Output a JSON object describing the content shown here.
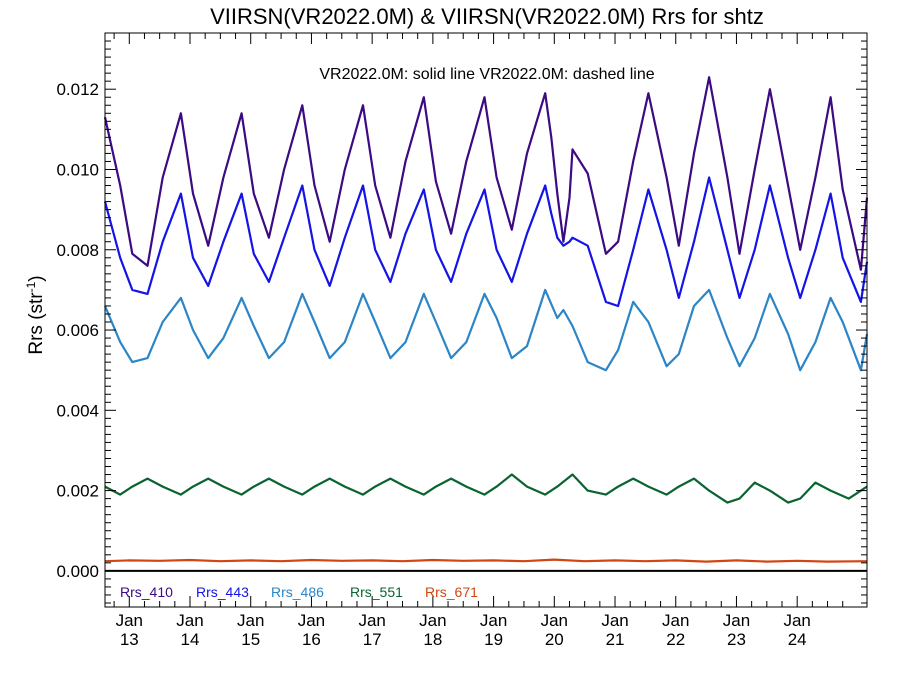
{
  "chart_data": {
    "type": "line",
    "title": "VIIRSN(VR2022.0M) & VIIRSN(VR2022.0M)  Rrs for shtz",
    "annotation": "VR2022.0M: solid line   VR2022.0M: dashed line",
    "ylabel": "Rrs (str",
    "ylabel_sup": "-1",
    "ylabel_close": ")",
    "xlabel": "",
    "xlim": [
      12.6,
      25.15
    ],
    "ylim": [
      -0.0009,
      0.0134
    ],
    "yticks": [
      0.0,
      0.002,
      0.004,
      0.006,
      0.008,
      0.01,
      0.012
    ],
    "ytick_labels": [
      "0.000",
      "0.002",
      "0.004",
      "0.006",
      "0.008",
      "0.010",
      "0.012"
    ],
    "xticks": [
      {
        "pos": 13,
        "month": "Jan",
        "day": "13"
      },
      {
        "pos": 14,
        "month": "Jan",
        "day": "14"
      },
      {
        "pos": 15,
        "month": "Jan",
        "day": "15"
      },
      {
        "pos": 16,
        "month": "Jan",
        "day": "16"
      },
      {
        "pos": 17,
        "month": "Jan",
        "day": "17"
      },
      {
        "pos": 18,
        "month": "Jan",
        "day": "18"
      },
      {
        "pos": 19,
        "month": "Jan",
        "day": "19"
      },
      {
        "pos": 20,
        "month": "Jan",
        "day": "20"
      },
      {
        "pos": 21,
        "month": "Jan",
        "day": "21"
      },
      {
        "pos": 22,
        "month": "Jan",
        "day": "22"
      },
      {
        "pos": 23,
        "month": "Jan",
        "day": "23"
      },
      {
        "pos": 24,
        "month": "Jan",
        "day": "24"
      }
    ],
    "zero_line": true,
    "grid": false,
    "series": [
      {
        "name": "Rrs_410",
        "color": "#3c0a82",
        "x": [
          12.6,
          12.85,
          13.05,
          13.3,
          13.55,
          13.85,
          14.05,
          14.3,
          14.55,
          14.85,
          15.05,
          15.3,
          15.55,
          15.85,
          16.05,
          16.3,
          16.55,
          16.85,
          17.05,
          17.3,
          17.55,
          17.85,
          18.05,
          18.3,
          18.55,
          18.85,
          19.05,
          19.3,
          19.55,
          19.85,
          19.95,
          20.05,
          20.15,
          20.25,
          20.3,
          20.55,
          20.85,
          21.05,
          21.3,
          21.55,
          21.85,
          22.05,
          22.3,
          22.55,
          22.85,
          23.05,
          23.3,
          23.55,
          23.85,
          24.05,
          24.3,
          24.55,
          24.75,
          25.05,
          25.15
        ],
        "y": [
          0.0113,
          0.0096,
          0.0079,
          0.0076,
          0.0098,
          0.0114,
          0.0094,
          0.0081,
          0.0098,
          0.0114,
          0.0094,
          0.0083,
          0.01,
          0.0116,
          0.0096,
          0.0082,
          0.01,
          0.0116,
          0.0096,
          0.0083,
          0.0102,
          0.0118,
          0.0097,
          0.0084,
          0.0102,
          0.0118,
          0.0098,
          0.0085,
          0.0104,
          0.0119,
          0.0108,
          0.0094,
          0.0082,
          0.0093,
          0.0105,
          0.0099,
          0.0079,
          0.0082,
          0.0102,
          0.0119,
          0.0098,
          0.0081,
          0.0104,
          0.0123,
          0.0098,
          0.0079,
          0.01,
          0.012,
          0.0096,
          0.008,
          0.0098,
          0.0118,
          0.0095,
          0.0075,
          0.0093
        ]
      },
      {
        "name": "Rrs_443",
        "color": "#1414e6",
        "x": [
          12.6,
          12.85,
          13.05,
          13.3,
          13.55,
          13.85,
          14.05,
          14.3,
          14.55,
          14.85,
          15.05,
          15.3,
          15.55,
          15.85,
          16.05,
          16.3,
          16.55,
          16.85,
          17.05,
          17.3,
          17.55,
          17.85,
          18.05,
          18.3,
          18.55,
          18.85,
          19.05,
          19.3,
          19.55,
          19.85,
          19.95,
          20.05,
          20.15,
          20.25,
          20.3,
          20.55,
          20.85,
          21.05,
          21.3,
          21.55,
          21.85,
          22.05,
          22.3,
          22.55,
          22.85,
          23.05,
          23.3,
          23.55,
          23.85,
          24.05,
          24.3,
          24.55,
          24.75,
          25.05,
          25.15
        ],
        "y": [
          0.0092,
          0.0078,
          0.007,
          0.0069,
          0.0082,
          0.0094,
          0.0078,
          0.0071,
          0.0082,
          0.0094,
          0.0079,
          0.0072,
          0.0083,
          0.0096,
          0.008,
          0.0071,
          0.0083,
          0.0096,
          0.008,
          0.0072,
          0.0084,
          0.0095,
          0.008,
          0.0072,
          0.0084,
          0.0095,
          0.008,
          0.0072,
          0.0084,
          0.0096,
          0.0089,
          0.0083,
          0.0081,
          0.0082,
          0.0083,
          0.0081,
          0.0067,
          0.0066,
          0.008,
          0.0095,
          0.008,
          0.0068,
          0.0082,
          0.0098,
          0.008,
          0.0068,
          0.008,
          0.0096,
          0.0078,
          0.0068,
          0.008,
          0.0094,
          0.0078,
          0.0067,
          0.0077
        ]
      },
      {
        "name": "Rrs_486",
        "color": "#2b85c6",
        "x": [
          12.6,
          12.85,
          13.05,
          13.3,
          13.55,
          13.85,
          14.05,
          14.3,
          14.55,
          14.85,
          15.05,
          15.3,
          15.55,
          15.85,
          16.05,
          16.3,
          16.55,
          16.85,
          17.05,
          17.3,
          17.55,
          17.85,
          18.05,
          18.3,
          18.55,
          18.85,
          19.05,
          19.3,
          19.55,
          19.85,
          20.05,
          20.15,
          20.3,
          20.55,
          20.85,
          21.05,
          21.3,
          21.55,
          21.85,
          22.05,
          22.3,
          22.55,
          22.85,
          23.05,
          23.3,
          23.55,
          23.85,
          24.05,
          24.3,
          24.55,
          24.75,
          25.05,
          25.15
        ],
        "y": [
          0.0066,
          0.0057,
          0.0052,
          0.0053,
          0.0062,
          0.0068,
          0.006,
          0.0053,
          0.0058,
          0.0068,
          0.0061,
          0.0053,
          0.0057,
          0.0069,
          0.0062,
          0.0053,
          0.0057,
          0.0069,
          0.0062,
          0.0053,
          0.0057,
          0.0069,
          0.0062,
          0.0053,
          0.0057,
          0.0069,
          0.0063,
          0.0053,
          0.0056,
          0.007,
          0.0063,
          0.0065,
          0.0061,
          0.0052,
          0.005,
          0.0055,
          0.0067,
          0.0062,
          0.0051,
          0.0054,
          0.0066,
          0.007,
          0.0058,
          0.0051,
          0.0058,
          0.0069,
          0.0059,
          0.005,
          0.0057,
          0.0068,
          0.0062,
          0.005,
          0.0059
        ]
      },
      {
        "name": "Rrs_551",
        "color": "#0a6432",
        "x": [
          12.6,
          12.85,
          13.05,
          13.3,
          13.55,
          13.85,
          14.05,
          14.3,
          14.55,
          14.85,
          15.05,
          15.3,
          15.55,
          15.85,
          16.05,
          16.3,
          16.55,
          16.85,
          17.05,
          17.3,
          17.55,
          17.85,
          18.05,
          18.3,
          18.55,
          18.85,
          19.05,
          19.3,
          19.55,
          19.85,
          20.05,
          20.3,
          20.55,
          20.85,
          21.05,
          21.3,
          21.55,
          21.85,
          22.05,
          22.3,
          22.55,
          22.85,
          23.05,
          23.3,
          23.55,
          23.85,
          24.05,
          24.3,
          24.55,
          24.85,
          25.15
        ],
        "y": [
          0.0021,
          0.0019,
          0.0021,
          0.0023,
          0.0021,
          0.0019,
          0.0021,
          0.0023,
          0.0021,
          0.0019,
          0.0021,
          0.0023,
          0.0021,
          0.0019,
          0.0021,
          0.0023,
          0.0021,
          0.0019,
          0.0021,
          0.0023,
          0.0021,
          0.0019,
          0.0021,
          0.0023,
          0.0021,
          0.0019,
          0.0021,
          0.0024,
          0.0021,
          0.0019,
          0.0021,
          0.0024,
          0.002,
          0.0019,
          0.0021,
          0.0023,
          0.0021,
          0.0019,
          0.0021,
          0.0023,
          0.002,
          0.0017,
          0.0018,
          0.0022,
          0.002,
          0.0017,
          0.0018,
          0.0022,
          0.002,
          0.0018,
          0.0021
        ]
      },
      {
        "name": "Rrs_671",
        "color": "#d24614",
        "x": [
          12.6,
          13.0,
          13.5,
          14.0,
          14.5,
          15.0,
          15.5,
          16.0,
          16.5,
          17.0,
          17.5,
          18.0,
          18.5,
          19.0,
          19.5,
          20.0,
          20.5,
          21.0,
          21.5,
          22.0,
          22.5,
          23.0,
          23.5,
          24.0,
          24.5,
          25.15
        ],
        "y": [
          0.00024,
          0.00026,
          0.00025,
          0.00027,
          0.00024,
          0.00026,
          0.00024,
          0.00027,
          0.00025,
          0.00026,
          0.00024,
          0.00027,
          0.00025,
          0.00026,
          0.00024,
          0.00028,
          0.00024,
          0.00026,
          0.00024,
          0.00026,
          0.00023,
          0.00026,
          0.00023,
          0.00025,
          0.00023,
          0.00024
        ]
      }
    ]
  }
}
